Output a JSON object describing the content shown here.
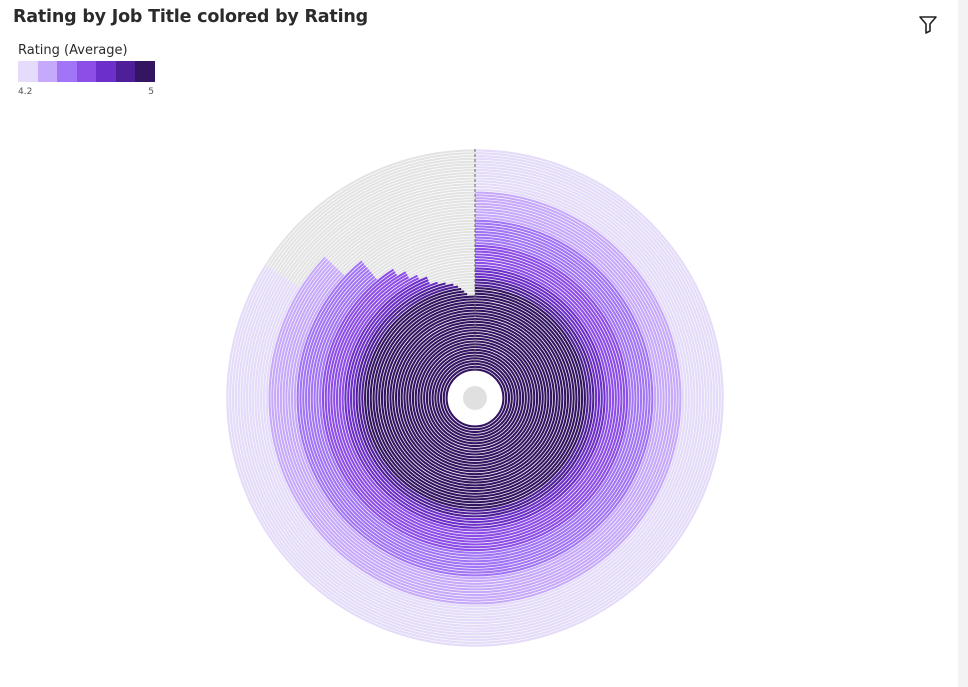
{
  "header": {
    "title": "Rating by Job Title colored by Rating",
    "filter_icon": "filter-icon"
  },
  "legend": {
    "title": "Rating (Average)",
    "min_label": "4.2",
    "max_label": "5",
    "colors": [
      "#e5dbfa",
      "#c7a9fb",
      "#a274f6",
      "#8d4ee8",
      "#6c2fc9",
      "#4e1f98",
      "#341562"
    ]
  },
  "chart_data": {
    "type": "radial-bar",
    "title": "Rating by Job Title colored by Rating",
    "color_legend_title": "Rating (Average)",
    "color_range": [
      4.2,
      5
    ],
    "max_value": 5,
    "start_angle": "top",
    "track_color": "#e3e3e3",
    "outer_to_inner_values": [
      4.2,
      4.2,
      4.2,
      4.2,
      4.2,
      4.2,
      4.2,
      4.2,
      4.2,
      4.2,
      4.2,
      4.2,
      4.2,
      4.2,
      4.2,
      4.35,
      4.35,
      4.35,
      4.35,
      4.35,
      4.35,
      4.35,
      4.35,
      4.35,
      4.35,
      4.45,
      4.45,
      4.45,
      4.45,
      4.45,
      4.45,
      4.45,
      4.45,
      4.45,
      4.55,
      4.55,
      4.55,
      4.6,
      4.6,
      4.6,
      4.65,
      4.65,
      4.7,
      4.7,
      4.7,
      4.75,
      4.8,
      4.85,
      4.88,
      4.9,
      4.92,
      4.94,
      5,
      5,
      5,
      5,
      5,
      5,
      5,
      5,
      5,
      5,
      5,
      5,
      5,
      5,
      5,
      5,
      5,
      5,
      5,
      5,
      5,
      5,
      5,
      5,
      5,
      5,
      5
    ]
  }
}
